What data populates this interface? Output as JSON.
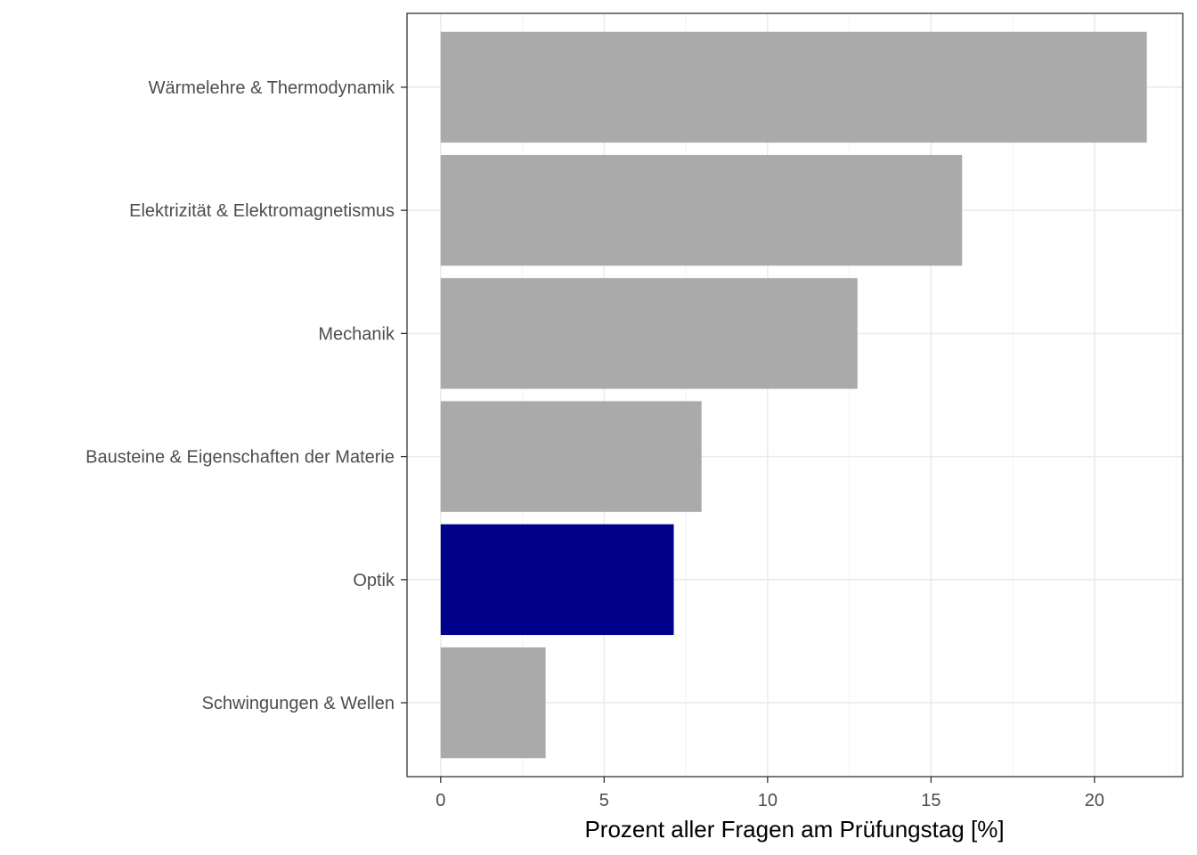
{
  "chart_data": {
    "type": "bar",
    "orientation": "horizontal",
    "categories": [
      "Wärmelehre & Thermodynamik",
      "Elektrizität & Elektromagnetismus",
      "Mechanik",
      "Bausteine & Eigenschaften der Materie",
      "Optik",
      "Schwingungen & Wellen"
    ],
    "values": [
      21.6,
      15.95,
      12.75,
      7.98,
      7.13,
      3.21
    ],
    "bar_colors": [
      "#aaaaaa",
      "#aaaaaa",
      "#aaaaaa",
      "#aaaaaa",
      "#00008b",
      "#aaaaaa"
    ],
    "highlight_category": "Optik",
    "xlabel": "Prozent aller Fragen am Prüfungstag [%]",
    "ylabel": "",
    "title": "",
    "xlim": [
      -1.03,
      22.7
    ],
    "xticks": [
      0,
      5,
      10,
      15,
      20
    ],
    "xtick_labels": [
      "0",
      "5",
      "10",
      "15",
      "20"
    ],
    "grid": true,
    "legend": "none"
  }
}
